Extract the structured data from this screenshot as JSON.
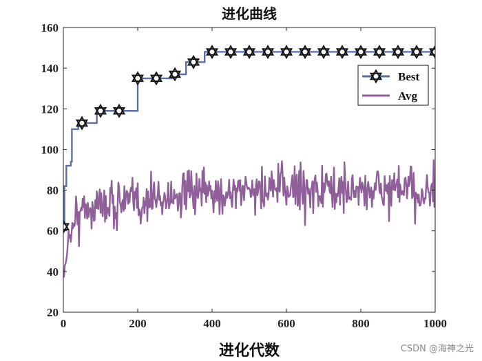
{
  "chart_data": {
    "type": "line",
    "title": "进化曲线",
    "xlabel": "进化代数",
    "ylabel": "",
    "xlim": [
      0,
      1000
    ],
    "ylim": [
      20,
      160
    ],
    "xticks": [
      0,
      200,
      400,
      600,
      800,
      1000
    ],
    "yticks": [
      20,
      40,
      60,
      80,
      100,
      120,
      140,
      160
    ],
    "legend_position": "top-right",
    "series": [
      {
        "name": "Best",
        "color": "#5b6ea8",
        "marker": "hexagram",
        "marker_every": 50,
        "steps": [
          [
            0,
            62
          ],
          [
            3,
            82
          ],
          [
            8,
            92
          ],
          [
            20,
            94
          ],
          [
            23,
            110
          ],
          [
            40,
            113
          ],
          [
            90,
            119
          ],
          [
            200,
            135
          ],
          [
            300,
            137
          ],
          [
            330,
            143
          ],
          [
            380,
            148
          ],
          [
            1000,
            148
          ]
        ]
      },
      {
        "name": "Avg",
        "color": "#8f5f9a",
        "noisy": true,
        "points": [
          [
            0,
            36
          ],
          [
            5,
            42
          ],
          [
            12,
            55
          ],
          [
            25,
            62
          ],
          [
            40,
            68
          ],
          [
            60,
            71
          ],
          [
            100,
            73
          ],
          [
            150,
            74
          ],
          [
            200,
            74
          ],
          [
            250,
            76
          ],
          [
            300,
            77
          ],
          [
            350,
            78
          ],
          [
            400,
            78
          ],
          [
            450,
            79
          ],
          [
            500,
            80
          ],
          [
            550,
            80
          ],
          [
            600,
            81
          ],
          [
            650,
            81
          ],
          [
            700,
            80
          ],
          [
            750,
            80
          ],
          [
            800,
            80
          ],
          [
            850,
            80
          ],
          [
            900,
            80
          ],
          [
            950,
            79
          ],
          [
            1000,
            79
          ]
        ]
      }
    ]
  },
  "watermark": "CSDN @海神之光"
}
